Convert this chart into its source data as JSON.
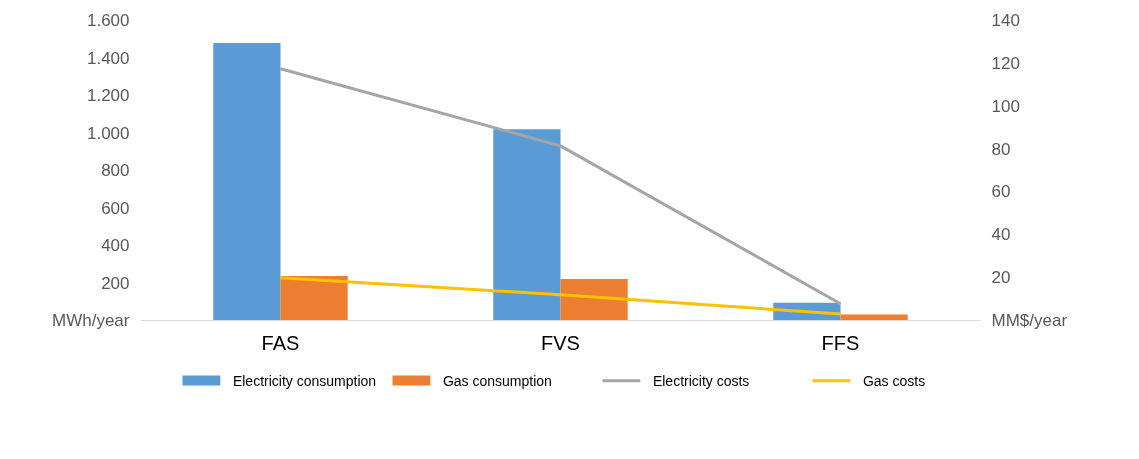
{
  "chart_data": {
    "type": "bar",
    "categories": [
      "FAS",
      "FVS",
      "FFS"
    ],
    "ylabel": "MWh/year",
    "y2label": "MM$/year",
    "ylim": [
      0,
      1600
    ],
    "yticks": [
      {
        "value": 200,
        "label": "200"
      },
      {
        "value": 400,
        "label": "400"
      },
      {
        "value": 600,
        "label": "600"
      },
      {
        "value": 800,
        "label": "800"
      },
      {
        "value": 1000,
        "label": "1.000"
      },
      {
        "value": 1200,
        "label": "1.200"
      },
      {
        "value": 1400,
        "label": "1.400"
      },
      {
        "value": 1600,
        "label": "1.600"
      }
    ],
    "y2lim": [
      0,
      140
    ],
    "y2ticks": [
      20,
      40,
      60,
      80,
      100,
      120,
      140
    ],
    "series": [
      {
        "name": "Electricity consumption",
        "color": "#5b9bd5",
        "values": [
          1480,
          1020,
          95
        ]
      },
      {
        "name": "Gas consumption",
        "color": "#ed7d31",
        "values": [
          237,
          221,
          32
        ]
      },
      {
        "name": "Electricity costs",
        "type": "line",
        "axis": "y2",
        "color": "#a5a5a5",
        "values": [
          117.5,
          81.5,
          7.8
        ]
      },
      {
        "name": "Gas costs",
        "type": "line",
        "axis": "y2",
        "color": "#ffc000",
        "values": [
          20,
          12,
          3
        ]
      }
    ],
    "grid": false,
    "legend": "bottom"
  }
}
